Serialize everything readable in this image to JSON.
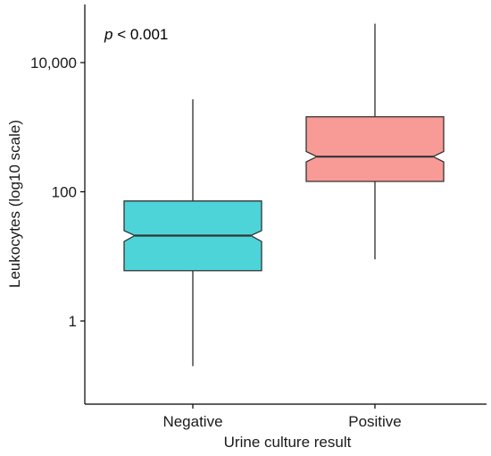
{
  "chart_data": {
    "type": "boxplot",
    "xlabel": "Urine culture result",
    "ylabel": "Leukocytes (log10 scale)",
    "y_scale": "log10",
    "ylim": [
      0.08,
      70000
    ],
    "y_ticks": [
      {
        "value": 1,
        "label": "1"
      },
      {
        "value": 100,
        "label": "100"
      },
      {
        "value": 10000,
        "label": "10,000"
      }
    ],
    "annotation": {
      "italic": "p",
      "text": " < 0.001"
    },
    "categories": [
      "Negative",
      "Positive"
    ],
    "series": [
      {
        "category": "Negative",
        "color": "#4DD4D9",
        "whisker_low": 0.2,
        "q1": 6,
        "median": 21,
        "q3": 72,
        "whisker_high": 2700,
        "notch_low": 17,
        "notch_high": 25
      },
      {
        "category": "Positive",
        "color": "#F89B96",
        "whisker_low": 9,
        "q1": 145,
        "median": 350,
        "q3": 1450,
        "whisker_high": 40000,
        "notch_low": 290,
        "notch_high": 420
      }
    ],
    "grid": false,
    "legend": "none"
  }
}
